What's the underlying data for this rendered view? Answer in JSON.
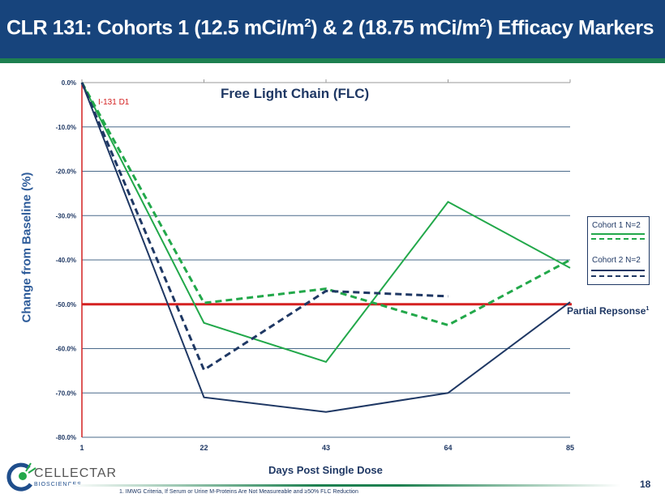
{
  "header": {
    "title_pre": "CLR 131: Cohorts 1 (12.5 mCi/m",
    "title_mid": ") & 2 (18.75 mCi/m",
    "title_post": ") Efficacy Markers",
    "sup": "2"
  },
  "chart_data": {
    "type": "line",
    "title": "Free Light Chain (FLC)",
    "xlabel": "Days Post Single Dose",
    "ylabel": "Change from Baseline (%)",
    "x": [
      1,
      22,
      43,
      64,
      85
    ],
    "x_ticks": [
      "1",
      "22",
      "43",
      "64",
      "85"
    ],
    "y_ticks": [
      "0.0%",
      "-10.0%",
      "-20.0%",
      "-30.0%",
      "-40.0%",
      "-50.0%",
      "-60.0%",
      "-70.0%",
      "-80.0%"
    ],
    "ylim": [
      -80,
      0
    ],
    "grid": true,
    "series": [
      {
        "name": "Cohort 1 patient A",
        "cohort": "Cohort 1 N=2",
        "style": "solid",
        "color": "#22a84a",
        "values": [
          0,
          -54.2,
          -63,
          -26.9,
          -41.8
        ]
      },
      {
        "name": "Cohort 1 patient B",
        "cohort": "Cohort 1 N=2",
        "style": "dashed",
        "color": "#22a84a",
        "values": [
          0,
          -49.7,
          -46.5,
          -54.7,
          -40
        ]
      },
      {
        "name": "Cohort 2 patient A",
        "cohort": "Cohort 2 N=2",
        "style": "solid",
        "color": "#1f3864",
        "values": [
          0,
          -71,
          -74.3,
          -70,
          -49.5
        ]
      },
      {
        "name": "Cohort 2 patient B",
        "cohort": "Cohort 2 N=2",
        "style": "dashed",
        "color": "#1f3864",
        "values": [
          0,
          -64.8,
          -47,
          -48.2,
          null
        ]
      }
    ],
    "annotations": {
      "dose_marker": "I-131 D1",
      "threshold_label": "Partial Repsonse",
      "threshold_sup": "1",
      "threshold_value": -50
    },
    "legend": {
      "placement": "right",
      "entries": [
        "Cohort 1 N=2",
        "Cohort 2 N=2"
      ]
    }
  },
  "footer": {
    "footnote": "1. IMWG Criteria, If Serum or Urine M-Proteins Are Not Measureable and ≥50% FLC Reduction",
    "page": "18",
    "logo_main": "CELLECTAR",
    "logo_sub": "BIOSCIENCES"
  }
}
